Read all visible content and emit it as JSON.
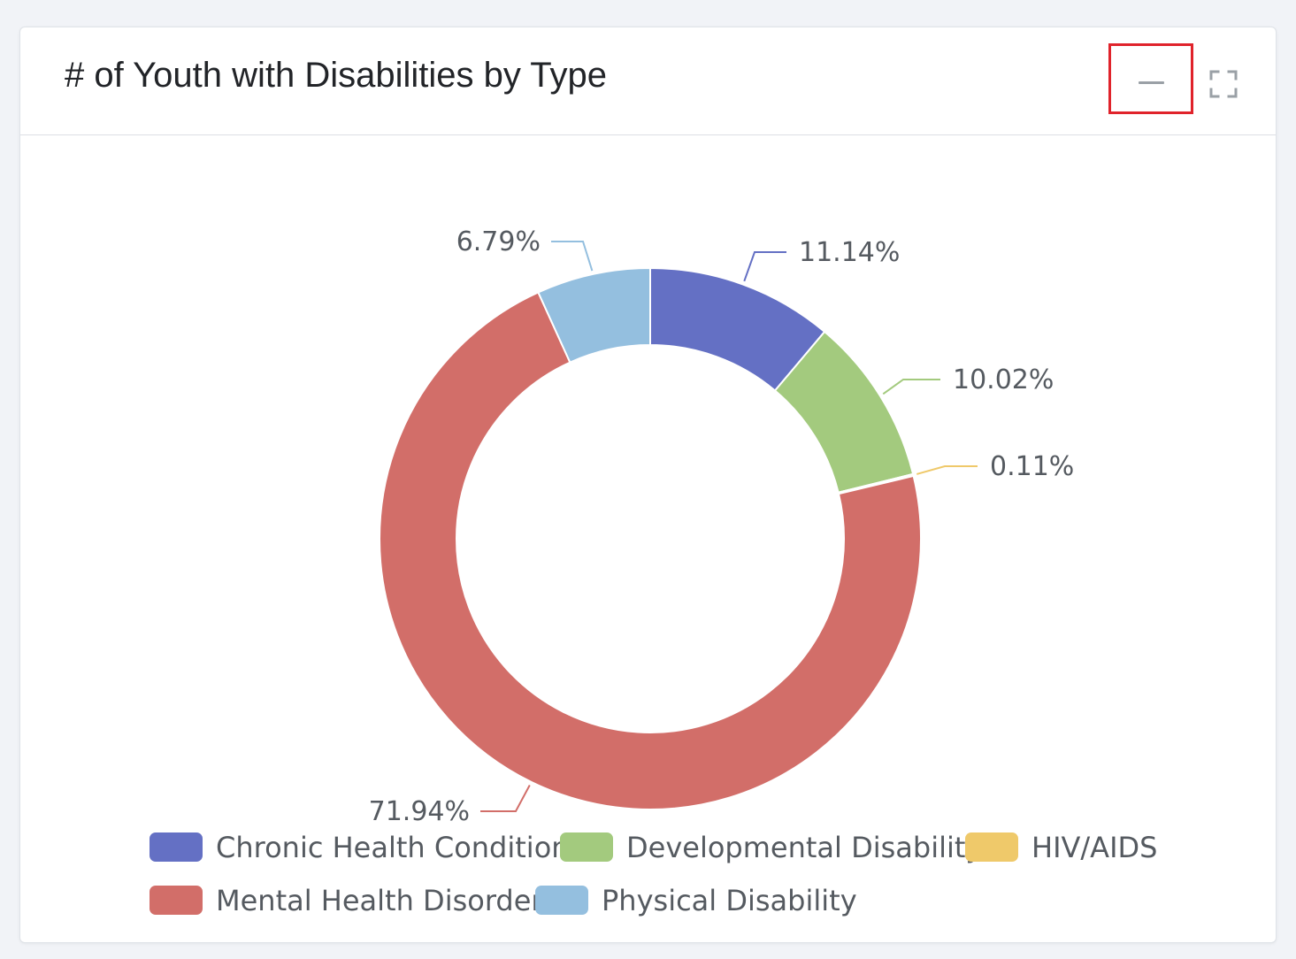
{
  "card": {
    "title": "# of Youth with Disabilities by Type",
    "minimize_icon": "minimize-icon",
    "expand_icon": "fullscreen-icon"
  },
  "chart_data": {
    "type": "pie",
    "variant": "donut",
    "legend_position": "bottom",
    "slices": [
      {
        "name": "Chronic Health Condition",
        "value": 11.14,
        "label": "11.14%",
        "color": "#6470c4"
      },
      {
        "name": "Developmental Disability",
        "value": 10.02,
        "label": "10.02%",
        "color": "#a3ca7e"
      },
      {
        "name": "HIV/AIDS",
        "value": 0.11,
        "label": "0.11%",
        "color": "#efc96a"
      },
      {
        "name": "Mental Health Disorder",
        "value": 71.94,
        "label": "71.94%",
        "color": "#d26e69"
      },
      {
        "name": "Physical Disability",
        "value": 6.79,
        "label": "6.79%",
        "color": "#94bfdf"
      }
    ]
  }
}
